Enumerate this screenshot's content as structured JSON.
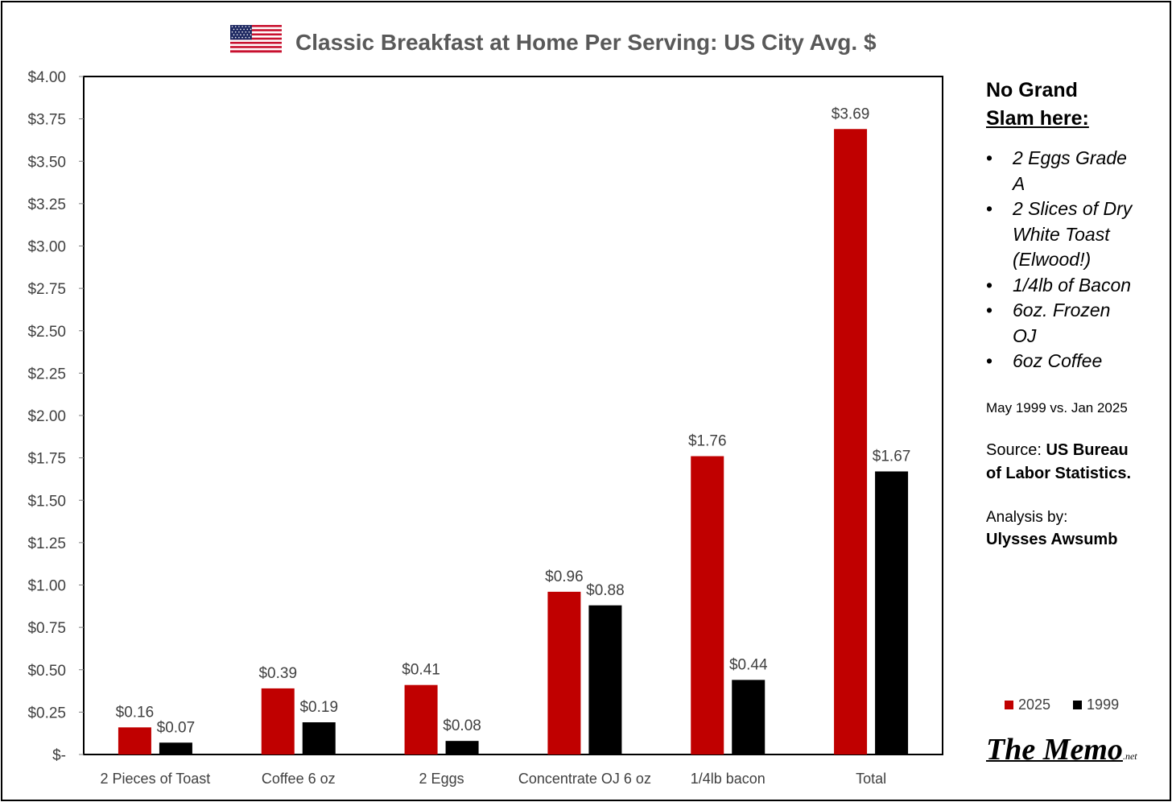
{
  "flag_icon": "us-flag-icon",
  "chart_data": {
    "type": "bar",
    "title": "Classic Breakfast at Home Per Serving: US City Avg. $",
    "categories": [
      "2 Pieces of Toast",
      "Coffee 6 oz",
      "2 Eggs",
      "Concentrate OJ 6 oz",
      "1/4lb bacon",
      "Total"
    ],
    "series": [
      {
        "name": "2025",
        "color": "#c00000",
        "values": [
          0.16,
          0.39,
          0.41,
          0.96,
          1.76,
          3.69
        ],
        "labels": [
          "$0.16",
          "$0.39",
          "$0.41",
          "$0.96",
          "$1.76",
          "$3.69"
        ]
      },
      {
        "name": "1999",
        "color": "#000000",
        "values": [
          0.07,
          0.19,
          0.08,
          0.88,
          0.44,
          1.67
        ],
        "labels": [
          "$0.07",
          "$0.19",
          "$0.08",
          "$0.88",
          "$0.44",
          "$1.67"
        ]
      }
    ],
    "ylim": [
      0,
      4
    ],
    "y_ticks": [
      0,
      0.25,
      0.5,
      0.75,
      1,
      1.25,
      1.5,
      1.75,
      2,
      2.25,
      2.5,
      2.75,
      3,
      3.25,
      3.5,
      3.75,
      4
    ],
    "y_tick_labels": [
      "$-",
      "$0.25",
      "$0.50",
      "$0.75",
      "$1.00",
      "$1.25",
      "$1.50",
      "$1.75",
      "$2.00",
      "$2.25",
      "$2.50",
      "$2.75",
      "$3.00",
      "$3.25",
      "$3.50",
      "$3.75",
      "$4.00"
    ],
    "grid": false,
    "legend_position": "bottom-right"
  },
  "side_panel": {
    "heading_line1": "No Grand",
    "heading_line2": "Slam here:",
    "menu_items": [
      "2 Eggs Grade A",
      "2 Slices of Dry White Toast (Elwood!)",
      "1/4lb of Bacon",
      "6oz. Frozen OJ",
      "6oz Coffee"
    ],
    "date_range": "May 1999  vs. Jan 2025",
    "source_label": "Source: ",
    "source_name": "US Bureau of Labor Statistics.",
    "analysis_label": "Analysis by:",
    "analyst": "Ulysses Awsumb"
  },
  "legend": {
    "items": [
      {
        "label": "2025",
        "color": "#c00000"
      },
      {
        "label": "1999",
        "color": "#000000"
      }
    ]
  },
  "brand": {
    "name": "The Memo",
    "suffix": ".net"
  }
}
